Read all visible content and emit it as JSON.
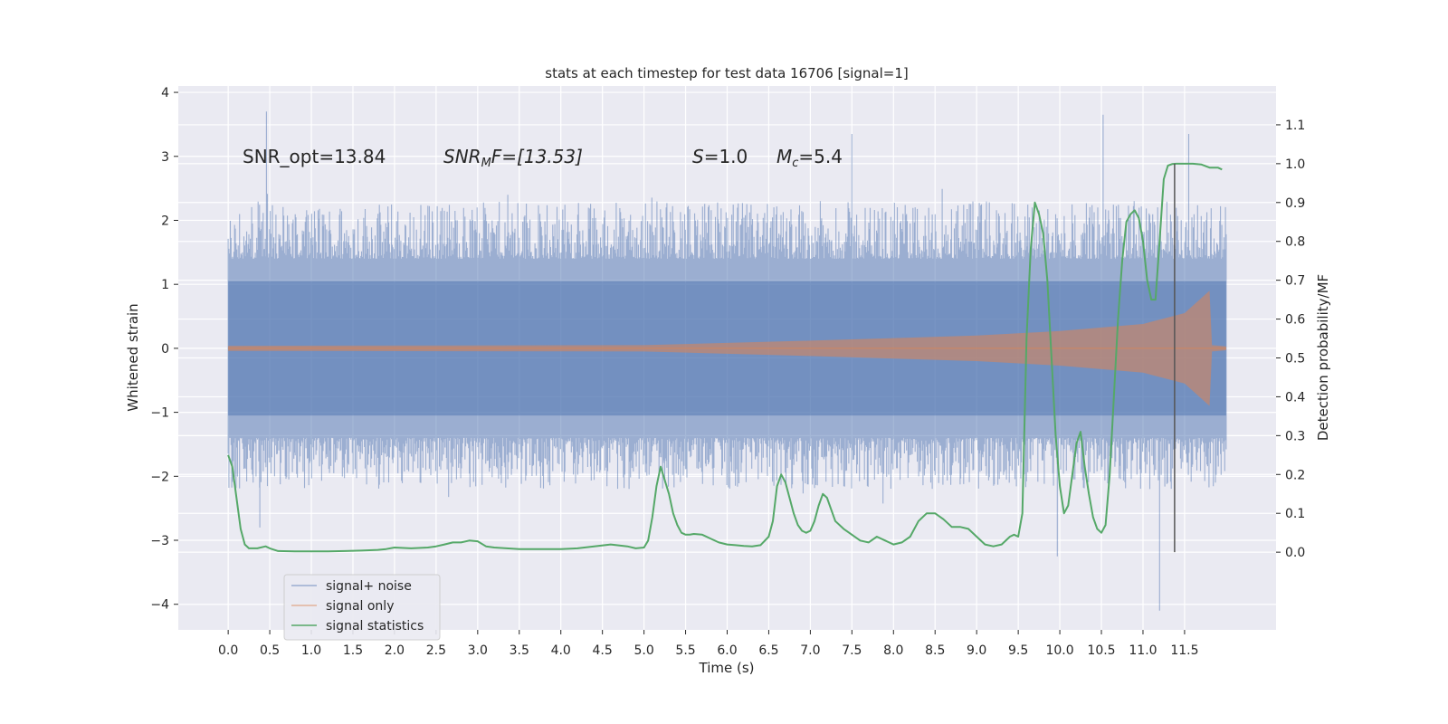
{
  "chart_data": {
    "type": "line",
    "title": "stats at each timestep for test data 16706 [signal=1]",
    "xlabel": "Time (s)",
    "ylabel_left": "Whitened strain",
    "ylabel_right": "Detection probability/MF",
    "xlim": [
      -0.6,
      12.6
    ],
    "ylim_left": [
      -4.4,
      4.1
    ],
    "ylim_right": [
      -0.2,
      1.2
    ],
    "x_ticks": [
      0.0,
      0.5,
      1.0,
      1.5,
      2.0,
      2.5,
      3.0,
      3.5,
      4.0,
      4.5,
      5.0,
      5.5,
      6.0,
      6.5,
      7.0,
      7.5,
      8.0,
      8.5,
      9.0,
      9.5,
      10.0,
      10.5,
      11.0,
      11.5
    ],
    "x_tick_labels": [
      "0.0",
      "0.5",
      "1.0",
      "1.5",
      "2.0",
      "2.5",
      "3.0",
      "3.5",
      "4.0",
      "4.5",
      "5.0",
      "5.5",
      "6.0",
      "6.5",
      "7.0",
      "7.5",
      "8.0",
      "8.5",
      "9.0",
      "9.5",
      "10.0",
      "10.5",
      "11.0",
      "11.5"
    ],
    "y_ticks_left": [
      -4,
      -3,
      -2,
      -1,
      0,
      1,
      2,
      3,
      4
    ],
    "y_tick_labels_left": [
      "−4",
      "−3",
      "−2",
      "−1",
      "0",
      "1",
      "2",
      "3",
      "4"
    ],
    "y_ticks_right": [
      0.0,
      0.1,
      0.2,
      0.3,
      0.4,
      0.5,
      0.6,
      0.7,
      0.8,
      0.9,
      1.0,
      1.1
    ],
    "y_tick_labels_right": [
      "0.0",
      "0.1",
      "0.2",
      "0.3",
      "0.4",
      "0.5",
      "0.6",
      "0.7",
      "0.8",
      "0.9",
      "1.0",
      "1.1"
    ],
    "grid": true,
    "legend_position": "lower-left",
    "annotations": {
      "snr_opt": "SNR_opt=13.84",
      "snr_mf_base": "SNR",
      "snr_mf_sub": "M",
      "snr_mf_rest": "F=[13.53]",
      "s_symbol": "S",
      "s_value": "=1.0",
      "mc_symbol": "M",
      "mc_sub": "c",
      "mc_value": "=5.4"
    },
    "detection_time": 11.38,
    "series": [
      {
        "name": "signal+ noise",
        "color": "#4c72b0",
        "x_range": [
          0.0,
          12.0
        ],
        "band_typical": [
          -1.4,
          1.4
        ],
        "envelope_typical": [
          -2.2,
          2.3
        ],
        "notable_peaks": [
          {
            "x": 0.46,
            "y": 3.7
          },
          {
            "x": 7.5,
            "y": 3.35
          },
          {
            "x": 10.52,
            "y": 3.65
          },
          {
            "x": 11.55,
            "y": 3.35
          },
          {
            "x": 0.38,
            "y": -2.8
          },
          {
            "x": 9.97,
            "y": -3.25
          },
          {
            "x": 11.2,
            "y": -4.1
          }
        ]
      },
      {
        "name": "signal only",
        "color": "#dd8452",
        "x_range": [
          0.0,
          12.0
        ],
        "amplitude_points": [
          {
            "x": 0.0,
            "y": 0.04
          },
          {
            "x": 5.0,
            "y": 0.05
          },
          {
            "x": 7.0,
            "y": 0.12
          },
          {
            "x": 9.0,
            "y": 0.2
          },
          {
            "x": 10.0,
            "y": 0.27
          },
          {
            "x": 11.0,
            "y": 0.38
          },
          {
            "x": 11.5,
            "y": 0.55
          },
          {
            "x": 11.8,
            "y": 0.9
          },
          {
            "x": 11.83,
            "y": 0.05
          },
          {
            "x": 12.0,
            "y": 0.03
          }
        ]
      },
      {
        "name": "signal statistics",
        "color": "#55a868",
        "x": [
          0.0,
          0.05,
          0.1,
          0.15,
          0.2,
          0.25,
          0.35,
          0.45,
          0.5,
          0.6,
          0.8,
          1.0,
          1.2,
          1.4,
          1.6,
          1.8,
          1.9,
          2.0,
          2.2,
          2.4,
          2.5,
          2.6,
          2.7,
          2.8,
          2.9,
          3.0,
          3.1,
          3.2,
          3.5,
          4.0,
          4.2,
          4.4,
          4.6,
          4.8,
          4.9,
          5.0,
          5.05,
          5.1,
          5.15,
          5.2,
          5.3,
          5.35,
          5.4,
          5.45,
          5.5,
          5.55,
          5.6,
          5.7,
          5.8,
          5.9,
          6.0,
          6.1,
          6.2,
          6.3,
          6.4,
          6.5,
          6.55,
          6.6,
          6.65,
          6.7,
          6.75,
          6.8,
          6.85,
          6.9,
          6.95,
          7.0,
          7.05,
          7.1,
          7.15,
          7.2,
          7.25,
          7.3,
          7.4,
          7.5,
          7.6,
          7.7,
          7.8,
          7.9,
          8.0,
          8.1,
          8.2,
          8.3,
          8.4,
          8.5,
          8.6,
          8.7,
          8.8,
          8.9,
          9.0,
          9.1,
          9.2,
          9.3,
          9.4,
          9.45,
          9.5,
          9.55,
          9.6,
          9.65,
          9.7,
          9.75,
          9.8,
          9.85,
          9.9,
          9.95,
          10.0,
          10.05,
          10.1,
          10.15,
          10.2,
          10.25,
          10.3,
          10.35,
          10.4,
          10.45,
          10.5,
          10.55,
          10.6,
          10.65,
          10.7,
          10.75,
          10.8,
          10.85,
          10.9,
          10.95,
          11.0,
          11.05,
          11.1,
          11.15,
          11.2,
          11.25,
          11.3,
          11.35,
          11.4,
          11.45,
          11.5,
          11.6,
          11.7,
          11.8,
          11.9,
          11.95
        ],
        "values": [
          0.25,
          0.22,
          0.14,
          0.06,
          0.02,
          0.01,
          0.01,
          0.015,
          0.01,
          0.003,
          0.002,
          0.002,
          0.002,
          0.003,
          0.004,
          0.006,
          0.008,
          0.012,
          0.01,
          0.012,
          0.015,
          0.02,
          0.025,
          0.025,
          0.03,
          0.028,
          0.015,
          0.012,
          0.008,
          0.008,
          0.01,
          0.015,
          0.02,
          0.015,
          0.01,
          0.012,
          0.03,
          0.09,
          0.17,
          0.22,
          0.15,
          0.1,
          0.07,
          0.05,
          0.045,
          0.045,
          0.047,
          0.045,
          0.035,
          0.025,
          0.02,
          0.018,
          0.016,
          0.015,
          0.018,
          0.04,
          0.08,
          0.17,
          0.2,
          0.18,
          0.14,
          0.1,
          0.07,
          0.055,
          0.05,
          0.055,
          0.08,
          0.12,
          0.15,
          0.14,
          0.11,
          0.08,
          0.06,
          0.045,
          0.03,
          0.025,
          0.04,
          0.03,
          0.02,
          0.025,
          0.04,
          0.08,
          0.1,
          0.1,
          0.085,
          0.065,
          0.065,
          0.06,
          0.04,
          0.02,
          0.015,
          0.02,
          0.04,
          0.045,
          0.04,
          0.1,
          0.55,
          0.78,
          0.9,
          0.87,
          0.82,
          0.7,
          0.5,
          0.3,
          0.17,
          0.1,
          0.12,
          0.2,
          0.28,
          0.31,
          0.22,
          0.15,
          0.09,
          0.06,
          0.05,
          0.07,
          0.2,
          0.4,
          0.6,
          0.75,
          0.85,
          0.87,
          0.88,
          0.86,
          0.8,
          0.7,
          0.65,
          0.65,
          0.8,
          0.96,
          0.995,
          0.999,
          1.0,
          1.0,
          1.0,
          1.0,
          0.998,
          0.99,
          0.99,
          0.985
        ]
      }
    ]
  }
}
